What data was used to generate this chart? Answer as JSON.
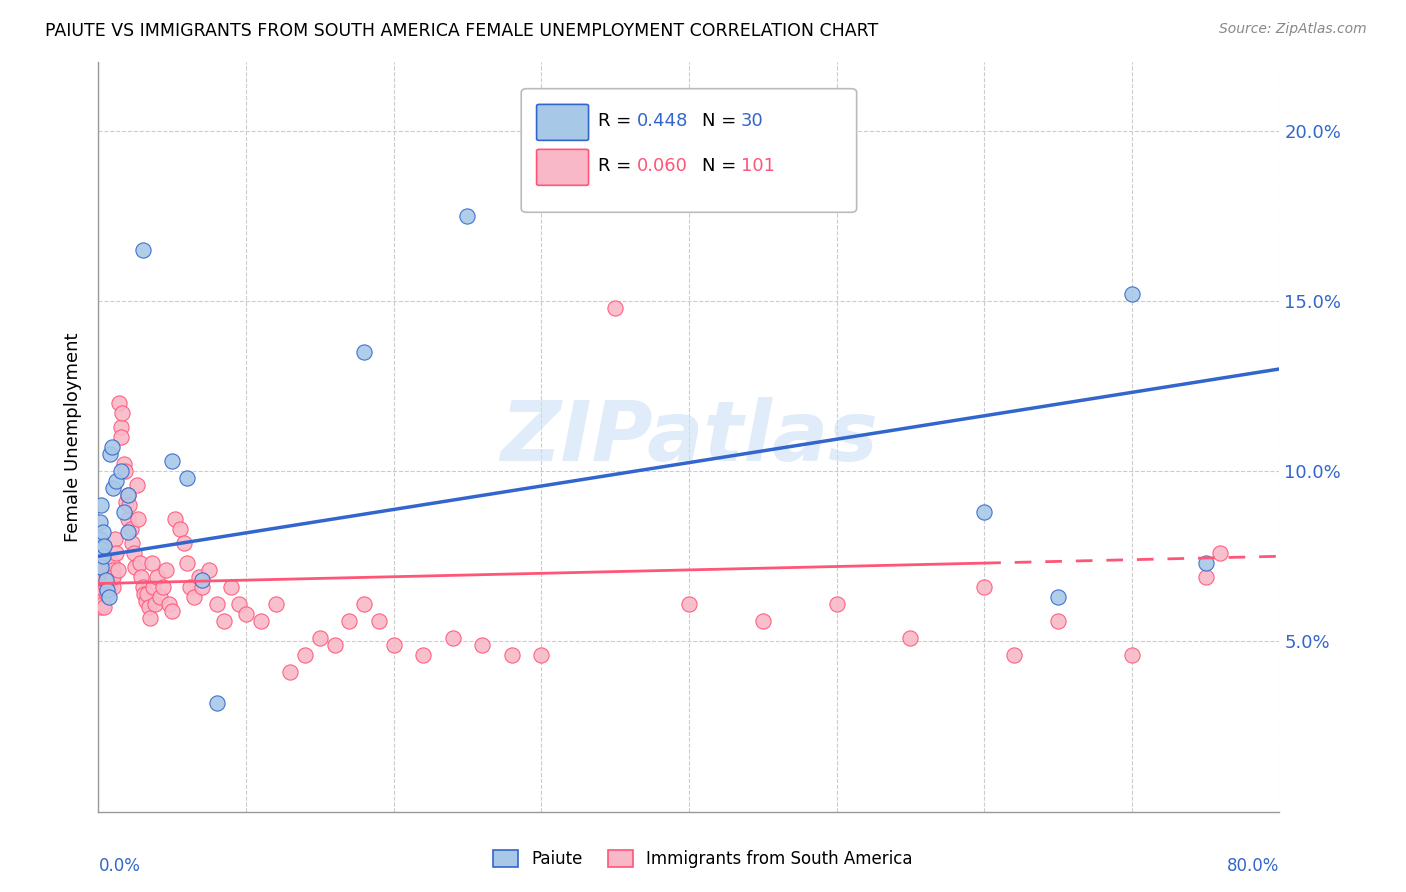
{
  "title": "PAIUTE VS IMMIGRANTS FROM SOUTH AMERICA FEMALE UNEMPLOYMENT CORRELATION CHART",
  "source": "Source: ZipAtlas.com",
  "ylabel": "Female Unemployment",
  "yticks": [
    0.05,
    0.1,
    0.15,
    0.2
  ],
  "ytick_labels": [
    "5.0%",
    "10.0%",
    "15.0%",
    "20.0%"
  ],
  "xlim": [
    0.0,
    0.8
  ],
  "ylim": [
    0.0,
    0.22
  ],
  "paiute_color": "#a8c8e8",
  "immigrants_color": "#f8b8c8",
  "paiute_line_color": "#3366CC",
  "immigrants_line_color": "#FF5577",
  "watermark": "ZIPatlas",
  "paiute_scatter": [
    [
      0.001,
      0.085
    ],
    [
      0.001,
      0.08
    ],
    [
      0.002,
      0.09
    ],
    [
      0.002,
      0.077
    ],
    [
      0.002,
      0.072
    ],
    [
      0.003,
      0.082
    ],
    [
      0.003,
      0.075
    ],
    [
      0.004,
      0.078
    ],
    [
      0.005,
      0.068
    ],
    [
      0.006,
      0.065
    ],
    [
      0.007,
      0.063
    ],
    [
      0.008,
      0.105
    ],
    [
      0.009,
      0.107
    ],
    [
      0.01,
      0.095
    ],
    [
      0.012,
      0.097
    ],
    [
      0.015,
      0.1
    ],
    [
      0.017,
      0.088
    ],
    [
      0.02,
      0.082
    ],
    [
      0.02,
      0.093
    ],
    [
      0.03,
      0.165
    ],
    [
      0.05,
      0.103
    ],
    [
      0.06,
      0.098
    ],
    [
      0.07,
      0.068
    ],
    [
      0.08,
      0.032
    ],
    [
      0.18,
      0.135
    ],
    [
      0.25,
      0.175
    ],
    [
      0.6,
      0.088
    ],
    [
      0.65,
      0.063
    ],
    [
      0.7,
      0.152
    ],
    [
      0.75,
      0.073
    ]
  ],
  "immigrants_scatter": [
    [
      0.001,
      0.067
    ],
    [
      0.001,
      0.072
    ],
    [
      0.001,
      0.062
    ],
    [
      0.002,
      0.067
    ],
    [
      0.002,
      0.063
    ],
    [
      0.002,
      0.06
    ],
    [
      0.003,
      0.068
    ],
    [
      0.003,
      0.064
    ],
    [
      0.003,
      0.061
    ],
    [
      0.004,
      0.065
    ],
    [
      0.004,
      0.06
    ],
    [
      0.005,
      0.07
    ],
    [
      0.005,
      0.066
    ],
    [
      0.005,
      0.072
    ],
    [
      0.006,
      0.064
    ],
    [
      0.006,
      0.069
    ],
    [
      0.007,
      0.067
    ],
    [
      0.007,
      0.072
    ],
    [
      0.008,
      0.066
    ],
    [
      0.008,
      0.07
    ],
    [
      0.009,
      0.073
    ],
    [
      0.009,
      0.069
    ],
    [
      0.01,
      0.071
    ],
    [
      0.01,
      0.066
    ],
    [
      0.01,
      0.069
    ],
    [
      0.011,
      0.08
    ],
    [
      0.012,
      0.076
    ],
    [
      0.013,
      0.071
    ],
    [
      0.014,
      0.12
    ],
    [
      0.015,
      0.113
    ],
    [
      0.015,
      0.11
    ],
    [
      0.016,
      0.117
    ],
    [
      0.017,
      0.102
    ],
    [
      0.018,
      0.1
    ],
    [
      0.019,
      0.091
    ],
    [
      0.02,
      0.086
    ],
    [
      0.02,
      0.093
    ],
    [
      0.021,
      0.09
    ],
    [
      0.022,
      0.083
    ],
    [
      0.023,
      0.079
    ],
    [
      0.024,
      0.076
    ],
    [
      0.025,
      0.072
    ],
    [
      0.026,
      0.096
    ],
    [
      0.027,
      0.086
    ],
    [
      0.028,
      0.073
    ],
    [
      0.029,
      0.069
    ],
    [
      0.03,
      0.066
    ],
    [
      0.031,
      0.064
    ],
    [
      0.032,
      0.062
    ],
    [
      0.033,
      0.064
    ],
    [
      0.034,
      0.06
    ],
    [
      0.035,
      0.057
    ],
    [
      0.036,
      0.073
    ],
    [
      0.037,
      0.066
    ],
    [
      0.038,
      0.061
    ],
    [
      0.04,
      0.069
    ],
    [
      0.042,
      0.063
    ],
    [
      0.044,
      0.066
    ],
    [
      0.046,
      0.071
    ],
    [
      0.048,
      0.061
    ],
    [
      0.05,
      0.059
    ],
    [
      0.052,
      0.086
    ],
    [
      0.055,
      0.083
    ],
    [
      0.058,
      0.079
    ],
    [
      0.06,
      0.073
    ],
    [
      0.062,
      0.066
    ],
    [
      0.065,
      0.063
    ],
    [
      0.068,
      0.069
    ],
    [
      0.07,
      0.066
    ],
    [
      0.075,
      0.071
    ],
    [
      0.08,
      0.061
    ],
    [
      0.085,
      0.056
    ],
    [
      0.09,
      0.066
    ],
    [
      0.095,
      0.061
    ],
    [
      0.1,
      0.058
    ],
    [
      0.11,
      0.056
    ],
    [
      0.12,
      0.061
    ],
    [
      0.13,
      0.041
    ],
    [
      0.14,
      0.046
    ],
    [
      0.15,
      0.051
    ],
    [
      0.16,
      0.049
    ],
    [
      0.17,
      0.056
    ],
    [
      0.18,
      0.061
    ],
    [
      0.19,
      0.056
    ],
    [
      0.2,
      0.049
    ],
    [
      0.22,
      0.046
    ],
    [
      0.24,
      0.051
    ],
    [
      0.26,
      0.049
    ],
    [
      0.28,
      0.046
    ],
    [
      0.3,
      0.046
    ],
    [
      0.35,
      0.148
    ],
    [
      0.4,
      0.061
    ],
    [
      0.45,
      0.056
    ],
    [
      0.5,
      0.061
    ],
    [
      0.55,
      0.051
    ],
    [
      0.6,
      0.066
    ],
    [
      0.62,
      0.046
    ],
    [
      0.65,
      0.056
    ],
    [
      0.7,
      0.046
    ],
    [
      0.75,
      0.069
    ],
    [
      0.76,
      0.076
    ]
  ],
  "paiute_line": {
    "x0": 0.0,
    "y0": 0.075,
    "x1": 0.8,
    "y1": 0.13
  },
  "immigrants_line_solid": {
    "x0": 0.0,
    "y0": 0.067,
    "x1": 0.6,
    "y1": 0.073
  },
  "immigrants_line_dashed": {
    "x0": 0.6,
    "y0": 0.073,
    "x1": 0.8,
    "y1": 0.075
  }
}
